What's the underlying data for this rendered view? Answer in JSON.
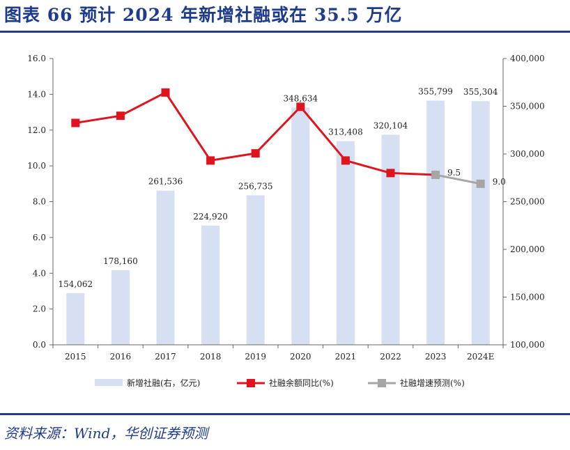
{
  "figure": {
    "title": "图表 66   预计 2024 年新增社融或在 35.5 万亿",
    "source": "资料来源：Wind，华创证券预测"
  },
  "colors": {
    "bar": "#d6e0f2",
    "line_actual": "#e0141e",
    "line_forecast": "#a6a6a6",
    "title_blue": "#1f3c8c"
  },
  "chart_data": {
    "type": "bar",
    "categories": [
      "2015",
      "2016",
      "2017",
      "2018",
      "2019",
      "2020",
      "2021",
      "2022",
      "2023",
      "2024E"
    ],
    "series": [
      {
        "name": "新增社融(右，亿元)",
        "type": "bar",
        "axis": "right",
        "values": [
          154062,
          178160,
          261536,
          224920,
          256735,
          348634,
          313408,
          320104,
          355799,
          355304
        ],
        "labels": [
          "154,062",
          "178,160",
          "261,536",
          "224,920",
          "256,735",
          "348,634",
          "313,408",
          "320,104",
          "355,799",
          "355,304"
        ]
      },
      {
        "name": "社融余额同比(%)",
        "type": "line",
        "axis": "left",
        "values": [
          12.4,
          12.8,
          14.1,
          10.3,
          10.7,
          13.3,
          10.3,
          9.6,
          9.5,
          null
        ]
      },
      {
        "name": "社融增速预测(%)",
        "type": "line",
        "axis": "left",
        "values": [
          null,
          null,
          null,
          null,
          null,
          null,
          null,
          null,
          9.5,
          9.0
        ],
        "labels": [
          "",
          "",
          "",
          "",
          "",
          "",
          "",
          "",
          "9.5",
          "9.0"
        ]
      }
    ],
    "y_left": {
      "ylim": [
        0,
        16
      ],
      "ticks": [
        "0.0",
        "2.0",
        "4.0",
        "6.0",
        "8.0",
        "10.0",
        "12.0",
        "14.0",
        "16.0"
      ]
    },
    "y_right": {
      "ylim": [
        100000,
        400000
      ],
      "ticks": [
        "100,000",
        "150,000",
        "200,000",
        "250,000",
        "300,000",
        "350,000",
        "400,000"
      ]
    },
    "legend": "bottom",
    "grid": false
  }
}
